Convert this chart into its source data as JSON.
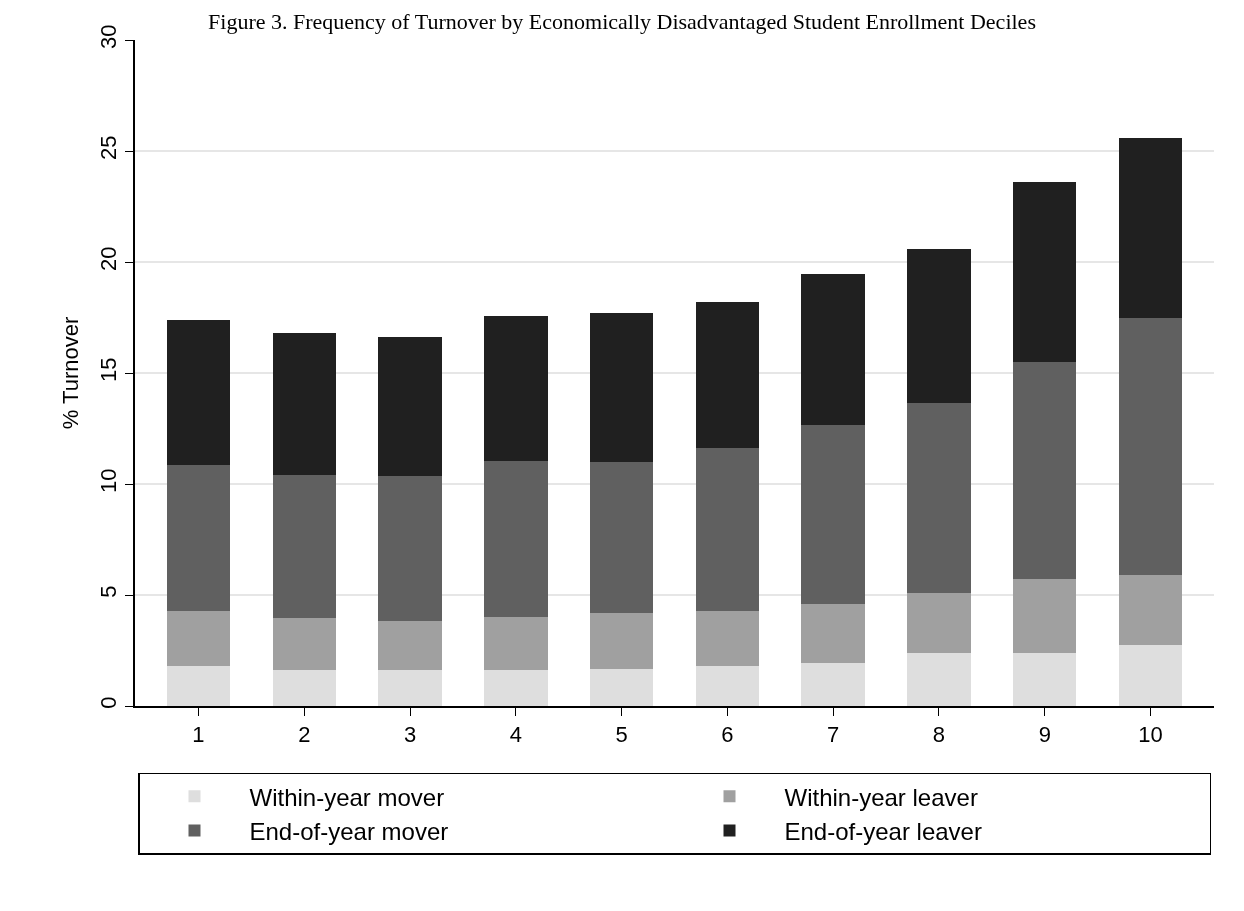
{
  "chart_data": {
    "type": "bar",
    "title": "Figure 3. Frequency of Turnover by Economically Disadvantaged Student Enrollment Deciles",
    "ylabel": "% Turnover",
    "categories": [
      "1",
      "2",
      "3",
      "4",
      "5",
      "6",
      "7",
      "8",
      "9",
      "10"
    ],
    "stacked": true,
    "series": [
      {
        "name": "Within-year mover",
        "color": "#dedede",
        "values": [
          1.8,
          1.6,
          1.6,
          1.6,
          1.65,
          1.8,
          1.95,
          2.4,
          2.4,
          2.75
        ]
      },
      {
        "name": "Within-year leaver",
        "color": "#a0a0a0",
        "values": [
          2.5,
          2.35,
          2.25,
          2.4,
          2.55,
          2.5,
          2.65,
          2.7,
          3.3,
          3.15
        ]
      },
      {
        "name": "End-of-year mover",
        "color": "#606060",
        "values": [
          6.55,
          6.45,
          6.5,
          7.05,
          6.8,
          7.3,
          8.05,
          8.55,
          9.8,
          11.6
        ]
      },
      {
        "name": "End-of-year leaver",
        "color": "#202020",
        "values": [
          6.55,
          6.4,
          6.25,
          6.5,
          6.7,
          6.6,
          6.8,
          6.95,
          8.1,
          8.1
        ]
      }
    ],
    "ylim": [
      0,
      30
    ],
    "yticks": [
      0,
      5,
      10,
      15,
      20,
      25,
      30
    ],
    "grid": "y",
    "legend": "bottom"
  }
}
